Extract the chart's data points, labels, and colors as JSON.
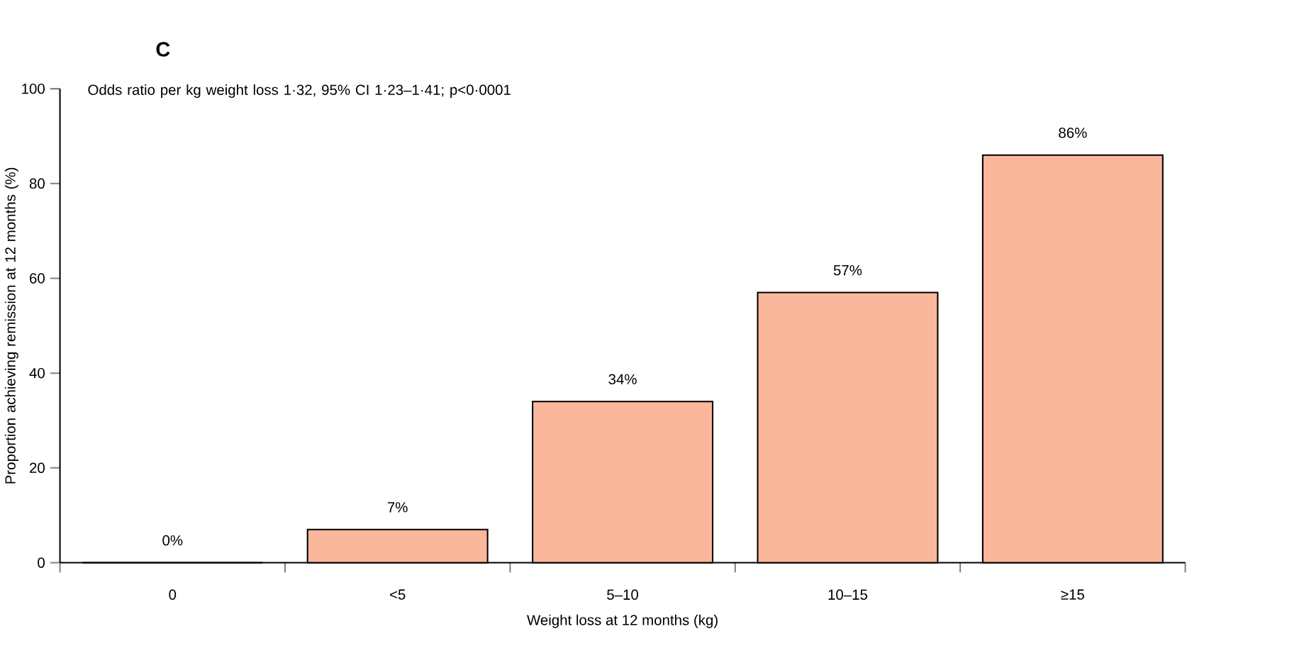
{
  "chart_data": {
    "type": "bar",
    "title": "C",
    "annotations": [
      "Odds ratio per kg weight loss 1·32, 95% CI 1·23–1·41; p<0·0001"
    ],
    "xlabel": "Weight loss at 12 months (kg)",
    "ylabel": "Proportion achieving remission at 12 months (%)",
    "categories": [
      "0",
      "<5",
      "5–10",
      "10–15",
      "≥15"
    ],
    "values": [
      0,
      7,
      34,
      57,
      86
    ],
    "value_labels": [
      "0%",
      "7%",
      "34%",
      "57%",
      "86%"
    ],
    "color": "#fbb79b",
    "ylim": [
      0,
      100
    ],
    "yticks": [
      0,
      20,
      40,
      60,
      80,
      100
    ]
  }
}
